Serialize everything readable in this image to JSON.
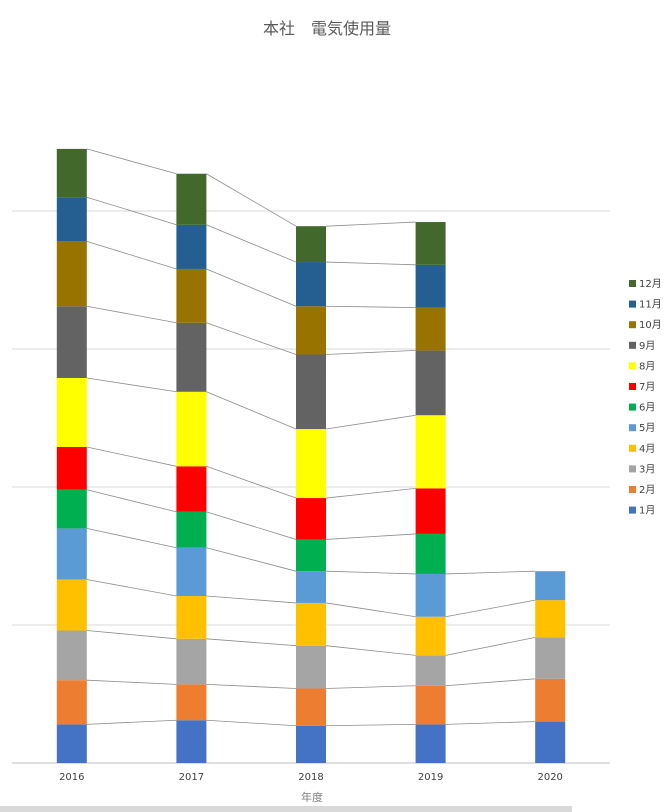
{
  "chart_data": {
    "type": "bar",
    "stacked": true,
    "title": "本社　電気使用量",
    "xlabel": "年度",
    "ylabel": "",
    "ylim": [
      0,
      4500
    ],
    "grid": true,
    "legend_position": "right",
    "series_lines": true,
    "categories": [
      "2016",
      "2017",
      "2018",
      "2019",
      "2020"
    ],
    "series": [
      {
        "name": "1月",
        "color": "#4472C4",
        "values": [
          280,
          310,
          270,
          280,
          300
        ]
      },
      {
        "name": "2月",
        "color": "#ED7D31",
        "values": [
          320,
          260,
          270,
          280,
          310
        ]
      },
      {
        "name": "3月",
        "color": "#A5A5A5",
        "values": [
          360,
          330,
          310,
          220,
          300
        ]
      },
      {
        "name": "4月",
        "color": "#FFC000",
        "values": [
          370,
          310,
          310,
          280,
          270
        ]
      },
      {
        "name": "5月",
        "color": "#5B9BD5",
        "values": [
          370,
          350,
          230,
          310,
          210
        ]
      },
      {
        "name": "6月",
        "color": "#00B050",
        "values": [
          280,
          260,
          230,
          290,
          0
        ]
      },
      {
        "name": "7月",
        "color": "#FF0000",
        "values": [
          310,
          330,
          300,
          330,
          0
        ]
      },
      {
        "name": "8月",
        "color": "#FFFF00",
        "values": [
          500,
          540,
          500,
          530,
          0
        ]
      },
      {
        "name": "9月",
        "color": "#636363",
        "values": [
          520,
          500,
          540,
          470,
          0
        ]
      },
      {
        "name": "10月",
        "color": "#997300",
        "values": [
          470,
          390,
          350,
          310,
          0
        ]
      },
      {
        "name": "11月",
        "color": "#255E91",
        "values": [
          320,
          320,
          320,
          310,
          0
        ]
      },
      {
        "name": "12月",
        "color": "#43682B",
        "values": [
          350,
          370,
          260,
          310,
          0
        ]
      }
    ]
  }
}
